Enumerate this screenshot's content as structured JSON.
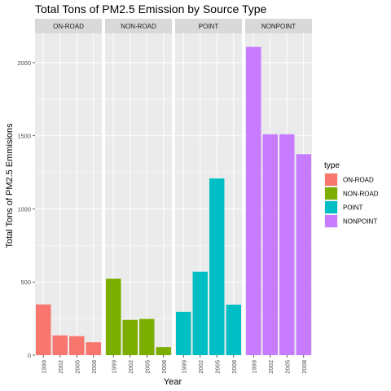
{
  "chart_data": {
    "type": "bar",
    "title": "Total Tons of PM2.5 Emission by Source Type",
    "xlabel": "Year",
    "ylabel": "Total Tons of PM2.5 Emmisions",
    "categories": [
      "1999",
      "2002",
      "2005",
      "2008"
    ],
    "ylim": [
      0,
      2200
    ],
    "yticks": [
      0,
      500,
      1000,
      1500,
      2000
    ],
    "grid": true,
    "legend": {
      "title": "type",
      "placement": "right"
    },
    "series": [
      {
        "name": "ON-ROAD",
        "color": "#F8766D",
        "values": [
          347,
          135,
          130,
          88
        ]
      },
      {
        "name": "NON-ROAD",
        "color": "#7CAE00",
        "values": [
          523,
          241,
          248,
          55
        ]
      },
      {
        "name": "POINT",
        "color": "#00BFC4",
        "values": [
          296,
          570,
          1208,
          345
        ]
      },
      {
        "name": "NONPOINT",
        "color": "#C77CFF",
        "values": [
          2108,
          1510,
          1510,
          1374
        ]
      }
    ]
  }
}
